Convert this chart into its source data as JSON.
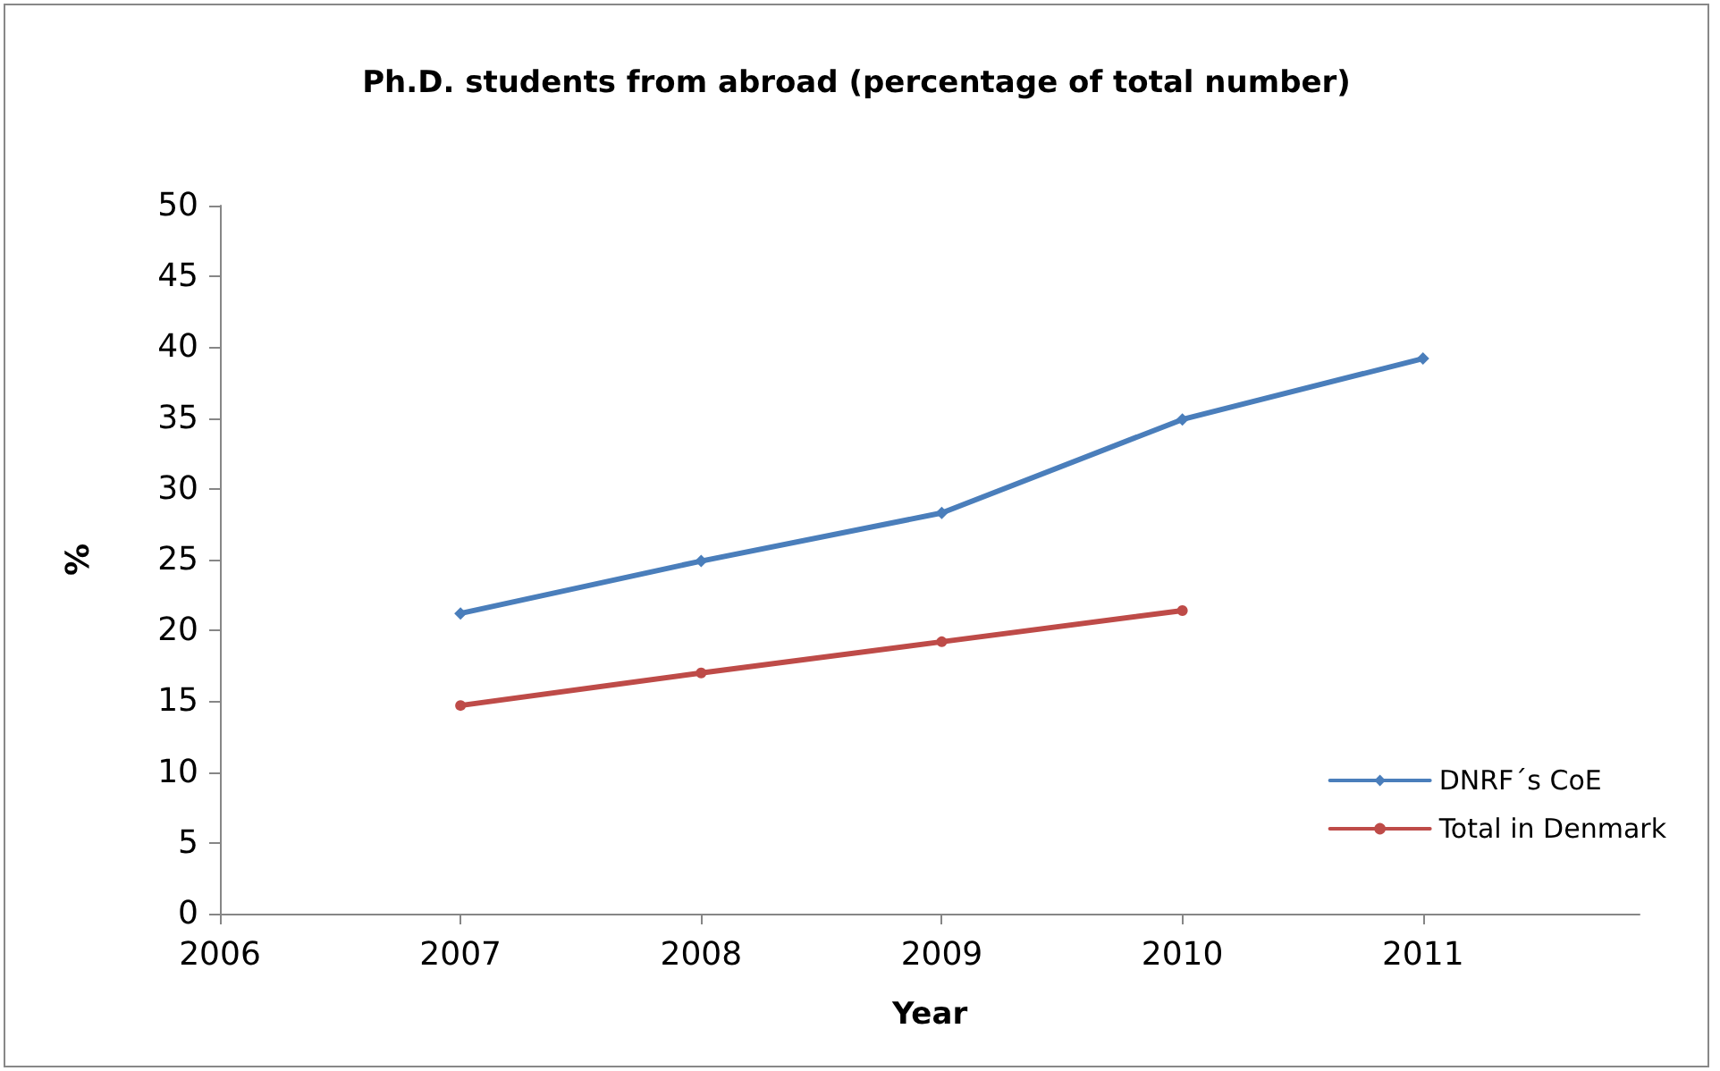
{
  "chart_data": {
    "type": "line",
    "title": "Ph.D. students from abroad (percentage of total number)",
    "xlabel": "Year",
    "ylabel": "%",
    "x": [
      2007,
      2008,
      2009,
      2010,
      2011
    ],
    "series": [
      {
        "name": "DNRF´s CoE",
        "color": "#4a7ebb",
        "marker": "diamond",
        "values": [
          21.2,
          24.9,
          28.3,
          34.9,
          39.2
        ]
      },
      {
        "name": "Total in Denmark",
        "color": "#be4b48",
        "marker": "circle",
        "values": [
          14.7,
          17.0,
          19.2,
          21.4,
          null
        ]
      }
    ],
    "xlim": [
      2006,
      2011.9
    ],
    "xticks": [
      2006,
      2007,
      2008,
      2009,
      2010,
      2011
    ],
    "ylim": [
      0,
      50
    ],
    "yticks": [
      0,
      5,
      10,
      15,
      20,
      25,
      30,
      35,
      40,
      45,
      50
    ],
    "grid": false,
    "legend": "bottom right",
    "line_style": "solid"
  }
}
